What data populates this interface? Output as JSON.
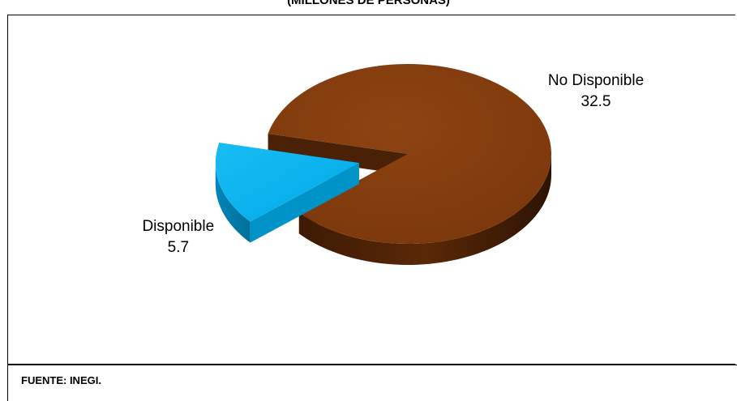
{
  "chart_data": {
    "type": "pie",
    "title": "(MILLONES DE PERSONAS)",
    "slices": [
      {
        "label": "No Disponible",
        "value": 32.5,
        "color": "#843c0c",
        "exploded": false
      },
      {
        "label": "Disponible",
        "value": 5.7,
        "color": "#00b0f0",
        "exploded": true
      }
    ],
    "style": "3d",
    "legend": "none"
  },
  "source": "FUENTE: INEGI."
}
